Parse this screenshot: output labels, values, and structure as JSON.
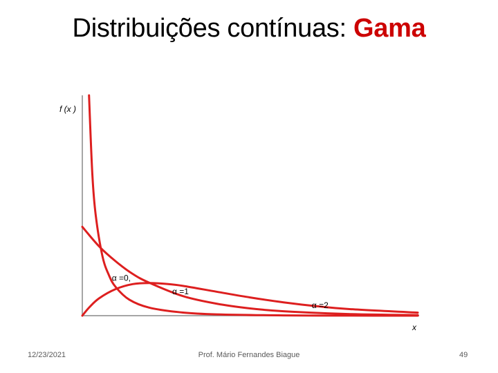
{
  "title": {
    "main": "Distribuições contínuas: ",
    "accent": "Gama",
    "accent_color": "#cc0000"
  },
  "chart_data": {
    "type": "line",
    "ylabel": "f (x )",
    "xlabel": "x",
    "curve_color": "#dd1f1f",
    "series": [
      {
        "name": "α =0,",
        "label_at": 0.42,
        "x": [
          0.1,
          0.15,
          0.2,
          0.3,
          0.4,
          0.5,
          0.7,
          1.0,
          1.5,
          2.0,
          3.0,
          4.0,
          5.0
        ],
        "y": [
          2.48,
          1.58,
          1.13,
          0.67,
          0.45,
          0.32,
          0.18,
          0.09,
          0.035,
          0.015,
          0.003,
          0.0007,
          0.0001
        ]
      },
      {
        "name": "α =1",
        "label_at": 1.32,
        "x": [
          0,
          0.25,
          0.5,
          0.75,
          1.0,
          1.5,
          2.0,
          2.5,
          3.0,
          4.0,
          5.0
        ],
        "y": [
          1.0,
          0.78,
          0.61,
          0.47,
          0.37,
          0.22,
          0.135,
          0.082,
          0.05,
          0.018,
          0.007
        ]
      },
      {
        "name": "α =2",
        "label_at": 3.4,
        "x": [
          0,
          0.1,
          0.25,
          0.5,
          0.75,
          1.0,
          1.25,
          1.5,
          2.0,
          2.5,
          3.0,
          3.5,
          4.0,
          5.0
        ],
        "y": [
          0,
          0.09,
          0.195,
          0.3,
          0.355,
          0.368,
          0.358,
          0.335,
          0.27,
          0.205,
          0.15,
          0.106,
          0.073,
          0.034
        ]
      }
    ]
  },
  "footer": {
    "date": "12/23/2021",
    "author": "Prof. Mário Fernandes Biague",
    "page": "49"
  }
}
